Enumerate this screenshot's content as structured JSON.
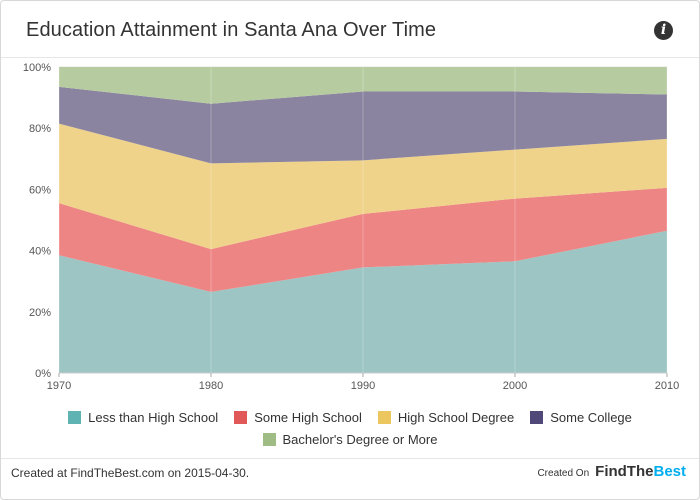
{
  "header": {
    "title": "Education Attainment in Santa Ana Over Time",
    "info_icon": "info-icon"
  },
  "chart_data": {
    "type": "area",
    "stacked": true,
    "x": [
      "1970",
      "1980",
      "1990",
      "2000",
      "2010"
    ],
    "ylim": [
      0,
      100
    ],
    "y_ticks": [
      "0%",
      "20%",
      "40%",
      "60%",
      "80%",
      "100%"
    ],
    "grid": true,
    "legend_position": "bottom",
    "series": [
      {
        "name": "Less than High School",
        "color": "#9cc5c4",
        "legend_color": "#5fb3b3",
        "values": [
          38.5,
          26.5,
          34.5,
          36.5,
          46.5
        ]
      },
      {
        "name": "Some High School",
        "color": "#ee8585",
        "legend_color": "#e05858",
        "values": [
          17,
          14,
          17.5,
          20.5,
          14
        ]
      },
      {
        "name": "High School Degree",
        "color": "#f0d38a",
        "legend_color": "#ecc75f",
        "values": [
          26,
          28,
          17.5,
          16,
          16
        ]
      },
      {
        "name": "Some College",
        "color": "#8a84a1",
        "legend_color": "#4f4878",
        "values": [
          12,
          19.5,
          22.5,
          19,
          14.5
        ]
      },
      {
        "name": "Bachelor's Degree or More",
        "color": "#b7cba0",
        "legend_color": "#9ebc84",
        "values": [
          6.5,
          12,
          8,
          8,
          9
        ]
      }
    ]
  },
  "footer": {
    "created_text": "Created at FindTheBest.com on 2015-04-30.",
    "created_on_label": "Created On",
    "logo_find": "FindThe",
    "logo_best": "Best"
  }
}
